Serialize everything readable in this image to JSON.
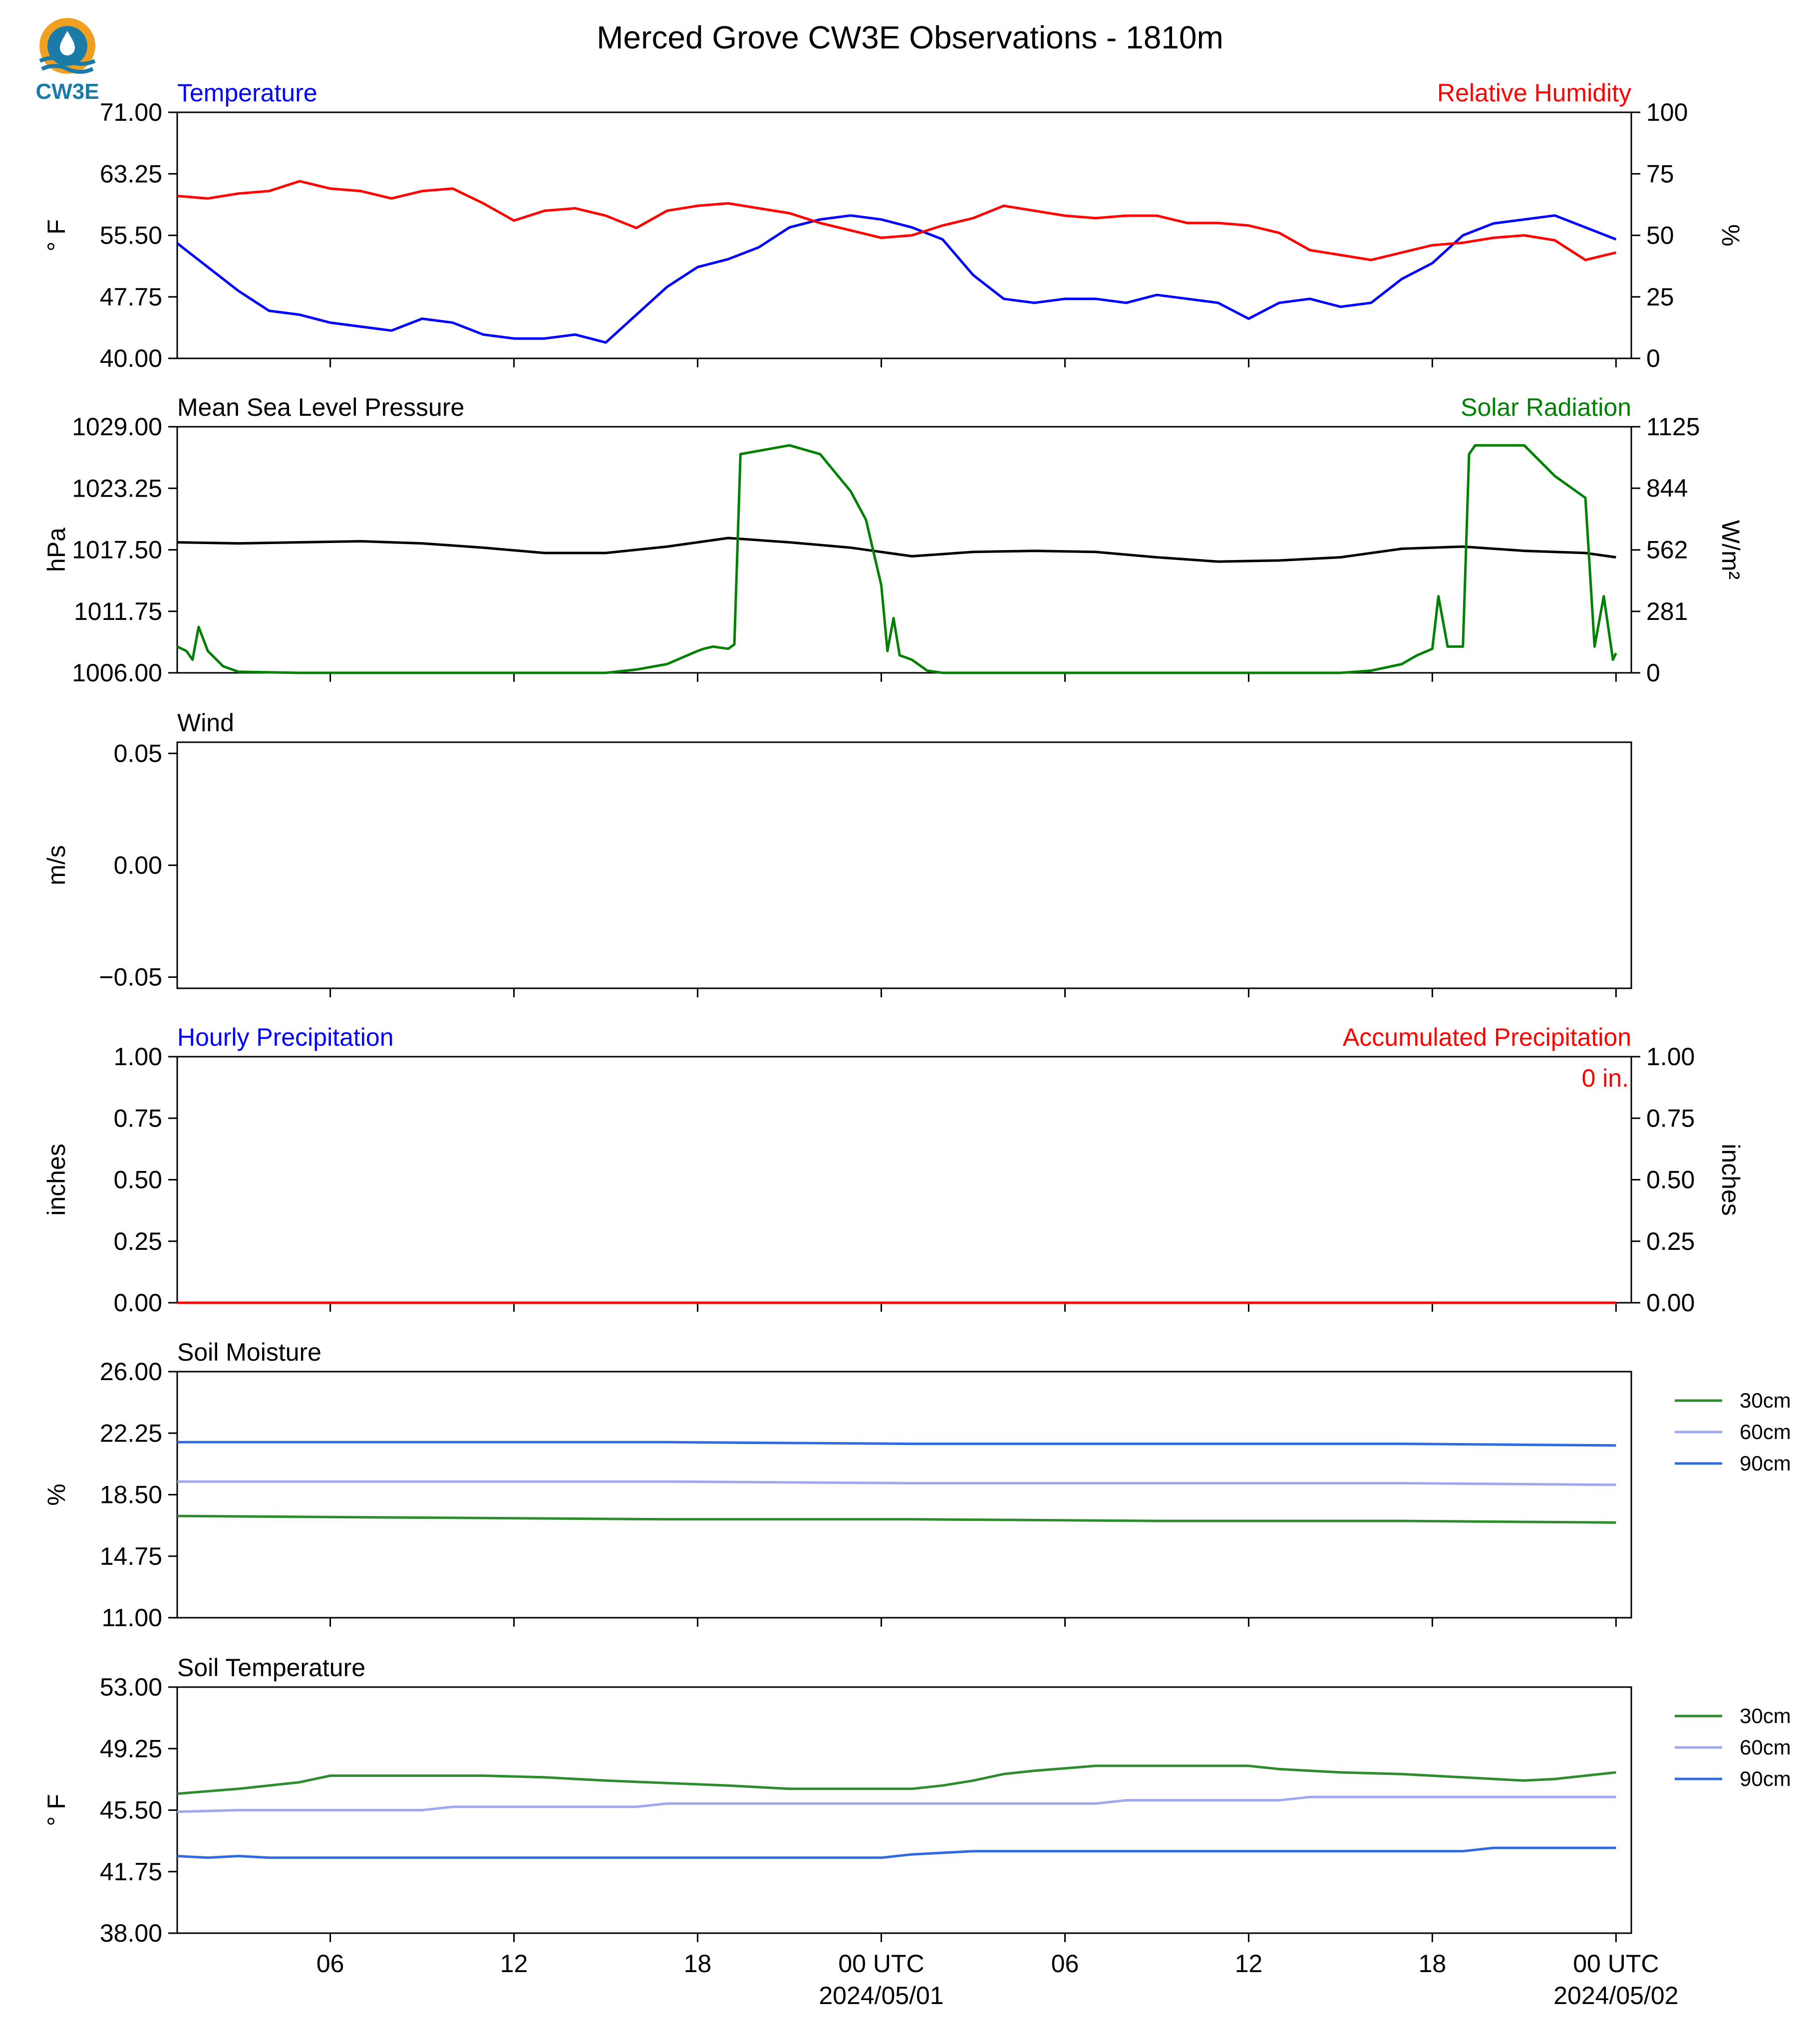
{
  "title": "Merced Grove CW3E Observations - 1810m",
  "logo_text": "CW3E",
  "colors": {
    "temperature": "#0000ff",
    "humidity": "#ff0000",
    "pressure": "#000000",
    "solar": "#008000",
    "hourly_precip": "#0000ff",
    "accum_precip": "#ff0000",
    "soil_30cm": "#2e8b2e",
    "soil_60cm": "#a0a8ee",
    "soil_90cm": "#2f6ae0",
    "logo_blue": "#1a7aa8",
    "logo_orange": "#f0a020"
  },
  "chart_data": [
    {
      "id": "temp_rh",
      "type": "line",
      "title_left": "Temperature",
      "title_right": "Relative Humidity",
      "ylabel": "° F",
      "ylabel_right": "%",
      "ylim": [
        40,
        71
      ],
      "ylim_right": [
        0,
        100
      ],
      "yticks": [
        "71.00",
        "63.25",
        "55.50",
        "47.75",
        "40.00"
      ],
      "yticks_right": [
        "100",
        "75",
        "50",
        "25",
        "0"
      ],
      "series": [
        {
          "name": "Temperature",
          "axis": "left",
          "color_key": "temperature",
          "x": [
            0,
            1,
            2,
            3,
            4,
            5,
            6,
            7,
            8,
            9,
            10,
            11,
            12,
            13,
            14,
            15,
            16,
            17,
            18,
            19,
            20,
            21,
            22,
            23,
            24,
            25,
            26,
            27,
            28,
            29,
            30,
            31,
            32,
            33,
            34,
            35,
            36,
            37,
            38,
            39,
            40,
            41,
            42,
            43,
            44,
            45,
            46,
            47
          ],
          "y": [
            54.5,
            51.5,
            48.5,
            46.0,
            45.5,
            44.5,
            44.0,
            43.5,
            45.0,
            44.5,
            43.0,
            42.5,
            42.5,
            43.0,
            42.0,
            45.5,
            49.0,
            51.5,
            52.5,
            54.0,
            56.5,
            57.5,
            58.0,
            57.5,
            56.5,
            55.0,
            50.5,
            47.5,
            47.0,
            47.5,
            47.5,
            47.0,
            48.0,
            47.5,
            47.0,
            45.0,
            47.0,
            47.5,
            46.5,
            47.0,
            50.0,
            52.0,
            55.5,
            57.0,
            57.5,
            58.0,
            56.5,
            55.0
          ]
        },
        {
          "name": "Relative Humidity",
          "axis": "right",
          "color_key": "humidity",
          "x": [
            0,
            1,
            2,
            3,
            4,
            5,
            6,
            7,
            8,
            9,
            10,
            11,
            12,
            13,
            14,
            15,
            16,
            17,
            18,
            19,
            20,
            21,
            22,
            23,
            24,
            25,
            26,
            27,
            28,
            29,
            30,
            31,
            32,
            33,
            34,
            35,
            36,
            37,
            38,
            39,
            40,
            41,
            42,
            43,
            44,
            45,
            46,
            47
          ],
          "y": [
            66,
            65,
            67,
            68,
            72,
            69,
            68,
            65,
            68,
            69,
            63,
            56,
            60,
            61,
            58,
            53,
            60,
            62,
            63,
            61,
            59,
            55,
            52,
            49,
            50,
            54,
            57,
            62,
            60,
            58,
            57,
            58,
            58,
            55,
            55,
            54,
            51,
            44,
            42,
            40,
            43,
            46,
            47,
            49,
            50,
            48,
            40,
            43
          ]
        }
      ]
    },
    {
      "id": "pressure_solar",
      "type": "line",
      "title_left": "Mean Sea Level Pressure",
      "title_right": "Solar Radiation",
      "ylabel": "hPa",
      "ylabel_right": "W/m²",
      "ylim": [
        1006,
        1029
      ],
      "ylim_right": [
        0,
        1125
      ],
      "yticks": [
        "1029.00",
        "1023.25",
        "1017.50",
        "1011.75",
        "1006.00"
      ],
      "yticks_right": [
        "1125",
        "844",
        "562",
        "281",
        "0"
      ],
      "series": [
        {
          "name": "Mean Sea Level Pressure",
          "axis": "left",
          "color_key": "pressure",
          "x": [
            0,
            2,
            4,
            6,
            8,
            10,
            12,
            14,
            16,
            18,
            20,
            22,
            23,
            24,
            26,
            28,
            30,
            32,
            34,
            36,
            38,
            40,
            42,
            44,
            46,
            47
          ],
          "y": [
            1018.2,
            1018.1,
            1018.2,
            1018.3,
            1018.1,
            1017.7,
            1017.2,
            1017.2,
            1017.8,
            1018.6,
            1018.2,
            1017.7,
            1017.3,
            1016.9,
            1017.3,
            1017.4,
            1017.3,
            1016.8,
            1016.4,
            1016.5,
            1016.8,
            1017.6,
            1017.8,
            1017.4,
            1017.2,
            1016.8
          ]
        },
        {
          "name": "Solar Radiation",
          "axis": "right",
          "color_key": "solar",
          "x": [
            0,
            0.3,
            0.5,
            0.7,
            1,
            1.5,
            2,
            4,
            8,
            12,
            14,
            15,
            16,
            16.5,
            17,
            17.2,
            17.5,
            18,
            18.2,
            18.4,
            20,
            21,
            22,
            22.5,
            23,
            23.2,
            23.4,
            23.6,
            24,
            24.5,
            25,
            26,
            30,
            36,
            38,
            39,
            40,
            40.5,
            41,
            41.2,
            41.5,
            42,
            42.2,
            42.4,
            44,
            45,
            46,
            46.3,
            46.6,
            46.9,
            47
          ],
          "y": [
            120,
            100,
            60,
            210,
            100,
            30,
            5,
            0,
            0,
            0,
            0,
            15,
            40,
            70,
            100,
            110,
            120,
            110,
            130,
            1000,
            1040,
            1000,
            830,
            700,
            400,
            100,
            250,
            80,
            60,
            10,
            0,
            0,
            0,
            0,
            0,
            10,
            40,
            80,
            110,
            350,
            120,
            120,
            1000,
            1040,
            1040,
            900,
            800,
            120,
            350,
            60,
            90
          ]
        }
      ]
    },
    {
      "id": "wind",
      "type": "line",
      "title_left": "Wind",
      "ylabel": "m/s",
      "ylim": [
        -0.055,
        0.055
      ],
      "yticks": [
        "0.05",
        "0.00",
        "−0.05"
      ],
      "series": []
    },
    {
      "id": "precip",
      "type": "line",
      "title_left": "Hourly Precipitation",
      "title_right": "Accumulated Precipitation",
      "annotation": "0 in.",
      "ylabel": "inches",
      "ylabel_right": "inches",
      "ylim": [
        0,
        1
      ],
      "ylim_right": [
        0,
        1
      ],
      "yticks": [
        "1.00",
        "0.75",
        "0.50",
        "0.25",
        "0.00"
      ],
      "yticks_right": [
        "1.00",
        "0.75",
        "0.50",
        "0.25",
        "0.00"
      ],
      "series": [
        {
          "name": "Hourly Precipitation",
          "axis": "left",
          "color_key": "hourly_precip",
          "x": [
            0,
            47
          ],
          "y": [
            0,
            0
          ]
        },
        {
          "name": "Accumulated Precipitation",
          "axis": "right",
          "color_key": "accum_precip",
          "x": [
            0,
            47
          ],
          "y": [
            0,
            0
          ]
        }
      ]
    },
    {
      "id": "soil_moisture",
      "type": "line",
      "title_left": "Soil Moisture",
      "ylabel": "%",
      "ylim": [
        11,
        26
      ],
      "yticks": [
        "26.00",
        "22.25",
        "18.50",
        "14.75",
        "11.00"
      ],
      "legend": "right",
      "series": [
        {
          "name": "30cm",
          "color_key": "soil_30cm",
          "x": [
            0,
            8,
            16,
            24,
            32,
            40,
            47
          ],
          "y": [
            17.2,
            17.1,
            17.0,
            17.0,
            16.9,
            16.9,
            16.8
          ]
        },
        {
          "name": "60cm",
          "color_key": "soil_60cm",
          "x": [
            0,
            8,
            16,
            24,
            32,
            40,
            47
          ],
          "y": [
            19.3,
            19.3,
            19.3,
            19.2,
            19.2,
            19.2,
            19.1
          ]
        },
        {
          "name": "90cm",
          "color_key": "soil_90cm",
          "x": [
            0,
            8,
            16,
            24,
            32,
            40,
            47
          ],
          "y": [
            21.7,
            21.7,
            21.7,
            21.6,
            21.6,
            21.6,
            21.5
          ]
        }
      ]
    },
    {
      "id": "soil_temp",
      "type": "line",
      "title_left": "Soil Temperature",
      "ylabel": "° F",
      "ylim": [
        38,
        53
      ],
      "yticks": [
        "53.00",
        "49.25",
        "45.50",
        "41.75",
        "38.00"
      ],
      "legend": "right",
      "series": [
        {
          "name": "30cm",
          "color_key": "soil_30cm",
          "x": [
            0,
            2,
            4,
            5,
            10,
            12,
            14,
            18,
            20,
            24,
            25,
            26,
            27,
            28,
            30,
            35,
            36,
            38,
            40,
            42,
            44,
            45,
            46,
            47
          ],
          "y": [
            46.5,
            46.8,
            47.2,
            47.6,
            47.6,
            47.5,
            47.3,
            47.0,
            46.8,
            46.8,
            47.0,
            47.3,
            47.7,
            47.9,
            48.2,
            48.2,
            48.0,
            47.8,
            47.7,
            47.5,
            47.3,
            47.4,
            47.6,
            47.8
          ]
        },
        {
          "name": "60cm",
          "color_key": "soil_60cm",
          "x": [
            0,
            2,
            8,
            9,
            15,
            16,
            30,
            31,
            36,
            37,
            40,
            47
          ],
          "y": [
            45.4,
            45.5,
            45.5,
            45.7,
            45.7,
            45.9,
            45.9,
            46.1,
            46.1,
            46.3,
            46.3,
            46.3
          ]
        },
        {
          "name": "90cm",
          "color_key": "soil_90cm",
          "x": [
            0,
            1,
            2,
            3,
            23,
            24,
            25,
            26,
            34,
            40,
            42,
            43,
            47
          ],
          "y": [
            42.7,
            42.6,
            42.7,
            42.6,
            42.6,
            42.8,
            42.9,
            43.0,
            43.0,
            43.0,
            43.0,
            43.2,
            43.2
          ]
        }
      ]
    }
  ],
  "x_axis": {
    "label": "",
    "range_hours": [
      0,
      47
    ],
    "ticks": [
      {
        "hour": 5,
        "label": "06"
      },
      {
        "hour": 11,
        "label": "12"
      },
      {
        "hour": 17,
        "label": "18"
      },
      {
        "hour": 23,
        "label": "00 UTC",
        "sublabel": "2024/05/01"
      },
      {
        "hour": 29,
        "label": "06"
      },
      {
        "hour": 35,
        "label": "12"
      },
      {
        "hour": 41,
        "label": "18"
      },
      {
        "hour": 47,
        "label": "00 UTC",
        "sublabel": "2024/05/02"
      }
    ]
  }
}
